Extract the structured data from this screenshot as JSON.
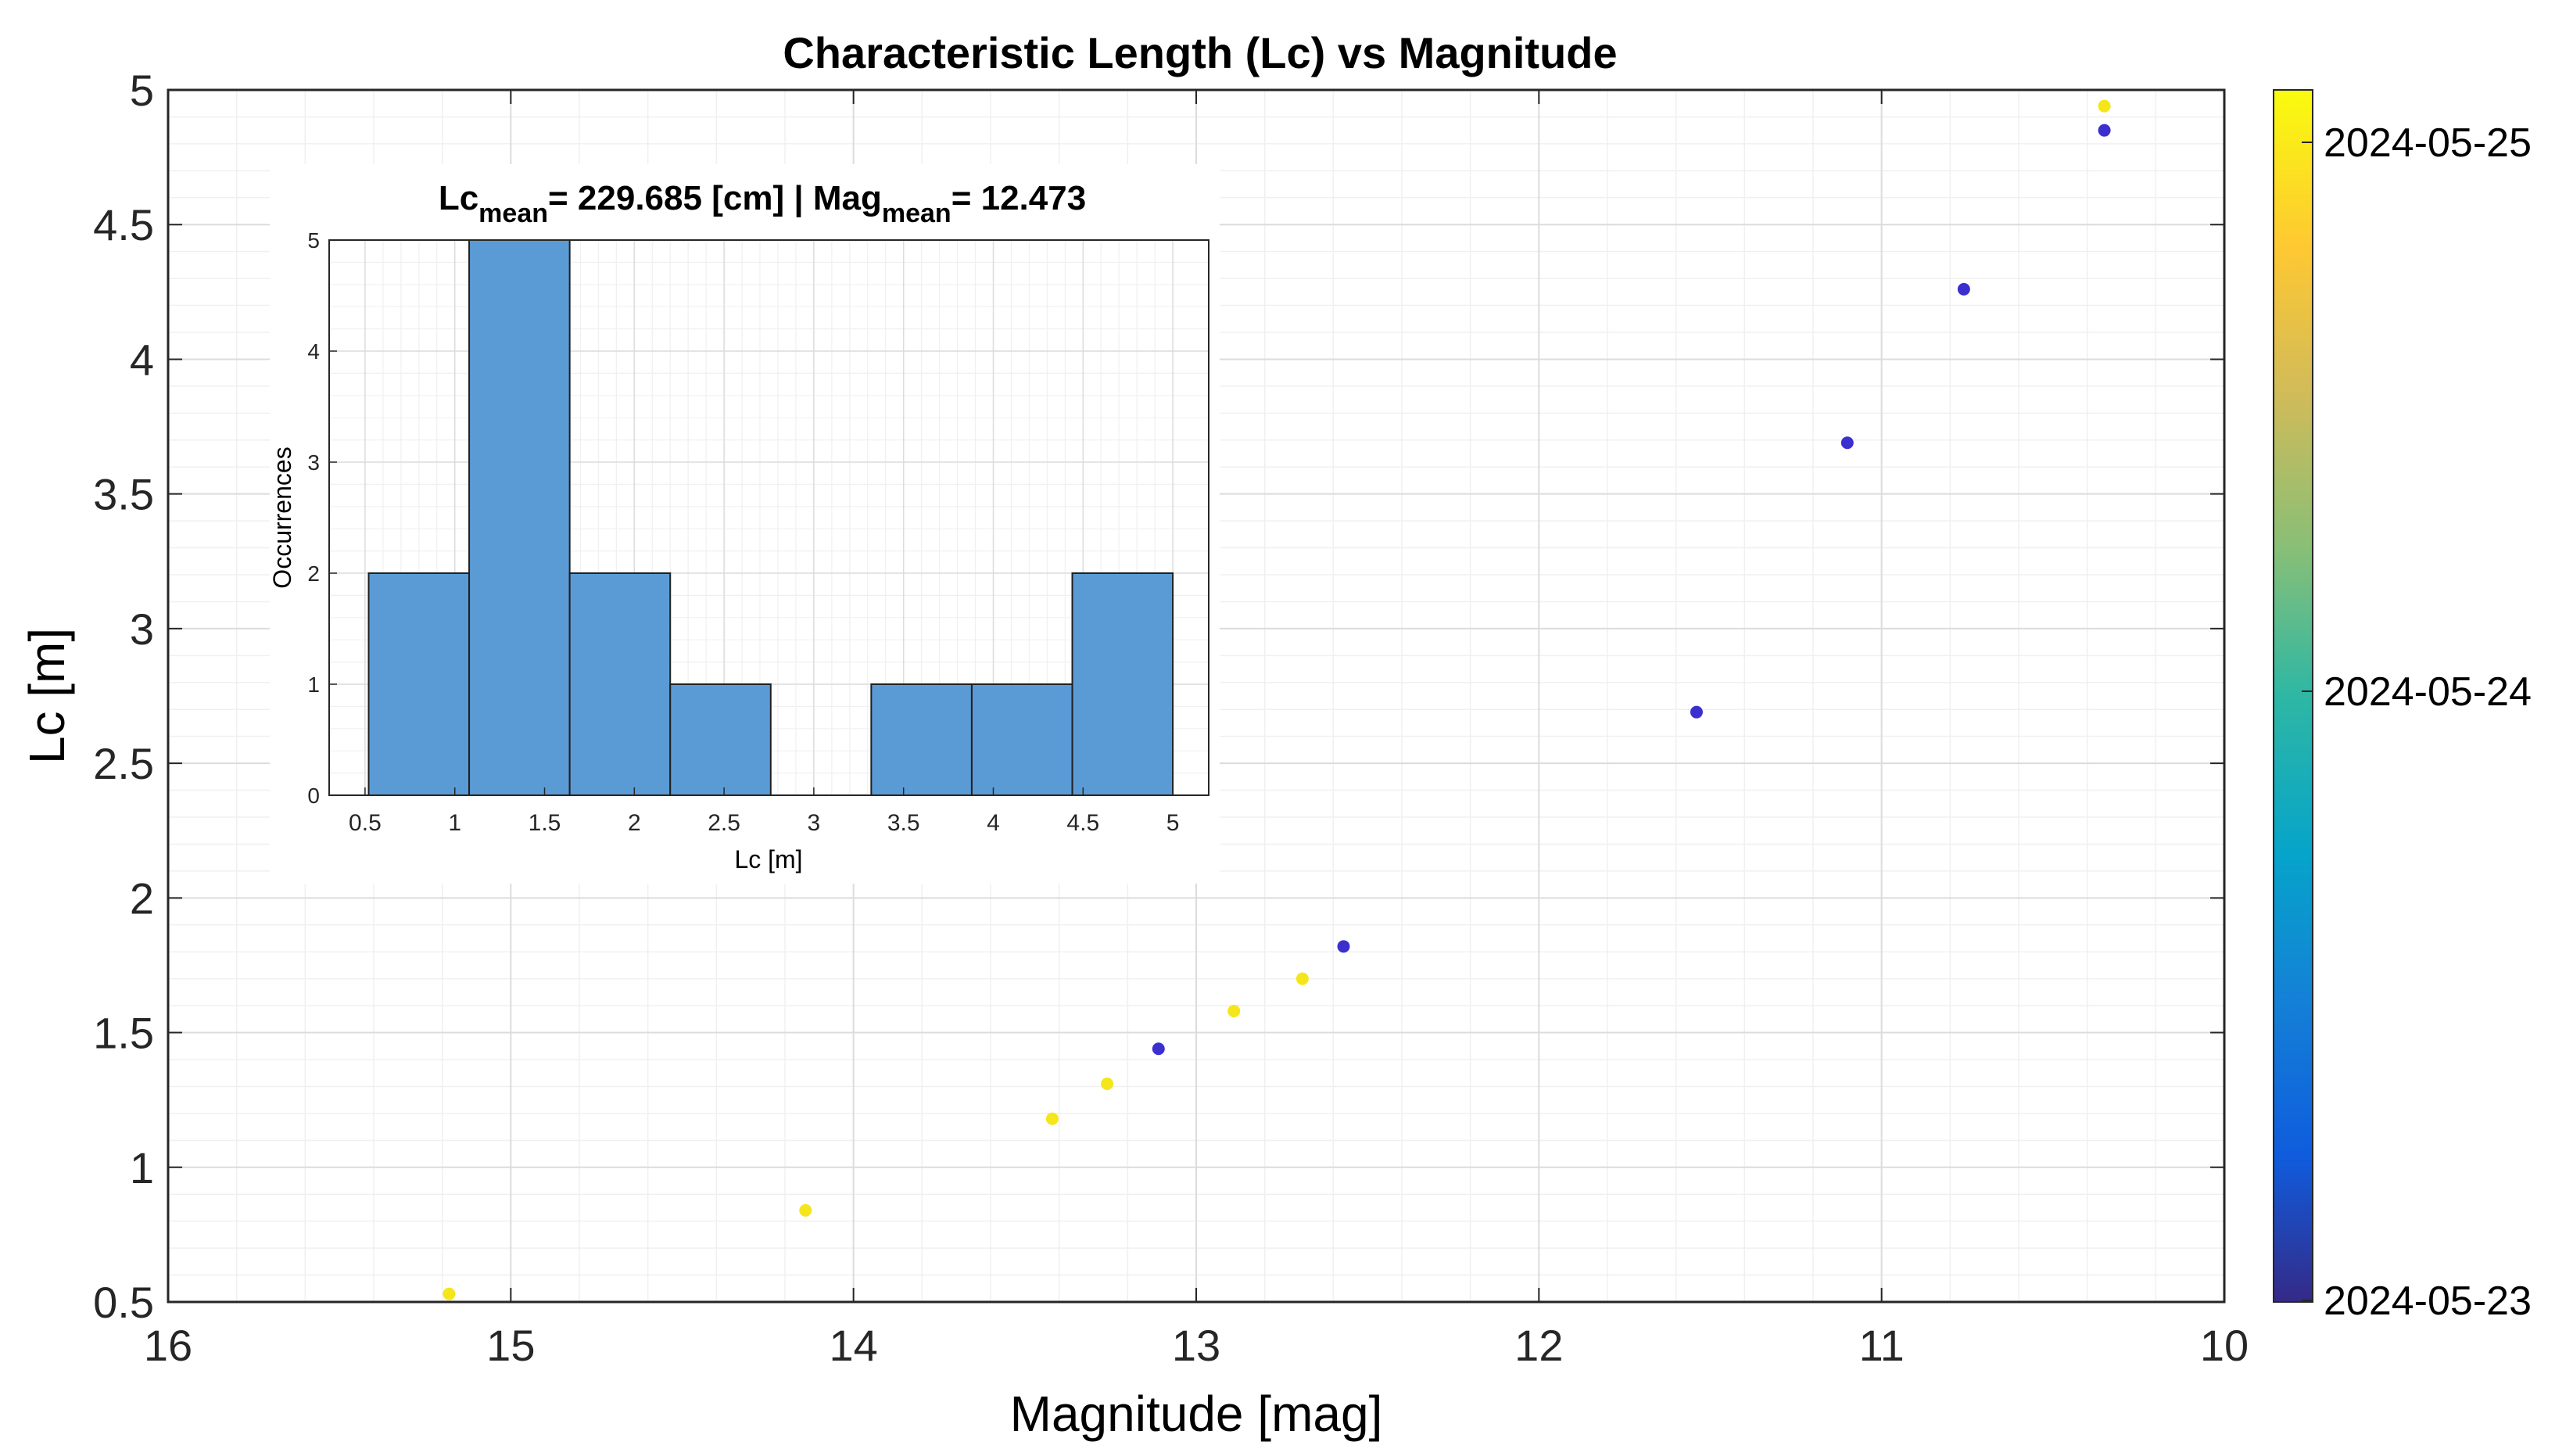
{
  "figure": {
    "title": "Characteristic Length (Lc) vs Magnitude"
  },
  "chart_data": [
    {
      "type": "scatter",
      "title": "Characteristic Length (Lc) vs Magnitude",
      "xlabel": "Magnitude [mag]",
      "ylabel": "Lc [m]",
      "xlim": [
        16,
        10
      ],
      "x_reversed": true,
      "ylim": [
        0.5,
        5
      ],
      "x_ticks": [
        "16",
        "15",
        "14",
        "13",
        "12",
        "11",
        "10"
      ],
      "y_ticks": [
        "0.5",
        "1",
        "1.5",
        "2",
        "2.5",
        "3",
        "3.5",
        "4",
        "4.5",
        "5"
      ],
      "grid": true,
      "minor_grid": true,
      "colorbar": {
        "colormap": "parula",
        "labels": [
          "2024-05-23",
          "2024-05-24",
          "2024-05-25"
        ],
        "range": [
          "2024-05-23",
          "2024-05-25"
        ]
      },
      "points": [
        {
          "x": 15.18,
          "y": 0.53,
          "date": "2024-05-25"
        },
        {
          "x": 14.14,
          "y": 0.84,
          "date": "2024-05-25"
        },
        {
          "x": 13.42,
          "y": 1.18,
          "date": "2024-05-25"
        },
        {
          "x": 13.26,
          "y": 1.31,
          "date": "2024-05-25"
        },
        {
          "x": 13.11,
          "y": 1.44,
          "date": "2024-05-23"
        },
        {
          "x": 12.89,
          "y": 1.58,
          "date": "2024-05-25"
        },
        {
          "x": 12.69,
          "y": 1.7,
          "date": "2024-05-25"
        },
        {
          "x": 12.57,
          "y": 1.82,
          "date": "2024-05-23"
        },
        {
          "x": 11.54,
          "y": 2.69,
          "date": "2024-05-23"
        },
        {
          "x": 11.1,
          "y": 3.69,
          "date": "2024-05-23"
        },
        {
          "x": 10.76,
          "y": 4.26,
          "date": "2024-05-23"
        },
        {
          "x": 10.35,
          "y": 4.85,
          "date": "2024-05-23"
        },
        {
          "x": 10.35,
          "y": 4.94,
          "date": "2024-05-25"
        }
      ]
    },
    {
      "type": "bar",
      "subtype": "histogram",
      "title_parts": {
        "lc": "Lc",
        "lc_sub": "mean",
        "lc_value": "= 229.685 [cm] | Mag",
        "mag_sub": "mean",
        "mag_value": "= 12.473"
      },
      "xlabel": "Lc [m]",
      "ylabel": "Occurrences",
      "xlim": [
        0.3,
        5.2
      ],
      "ylim": [
        0,
        5
      ],
      "x_ticks": [
        "0.5",
        "1",
        "1.5",
        "2",
        "2.5",
        "3",
        "3.5",
        "4",
        "4.5",
        "5"
      ],
      "y_ticks": [
        "0",
        "1",
        "2",
        "3",
        "4",
        "5"
      ],
      "bin_edges": [
        0.52,
        1.08,
        1.64,
        2.2,
        2.76,
        3.32,
        3.88,
        4.44,
        5.0
      ],
      "counts": [
        2,
        5,
        2,
        1,
        0,
        1,
        1,
        2
      ],
      "bar_color": "#5b9bd5",
      "grid": true
    }
  ],
  "colors": {
    "dot_early": "#3b2fcf",
    "dot_late": "#f5e51b",
    "hist_bar": "#5b9bd5"
  }
}
